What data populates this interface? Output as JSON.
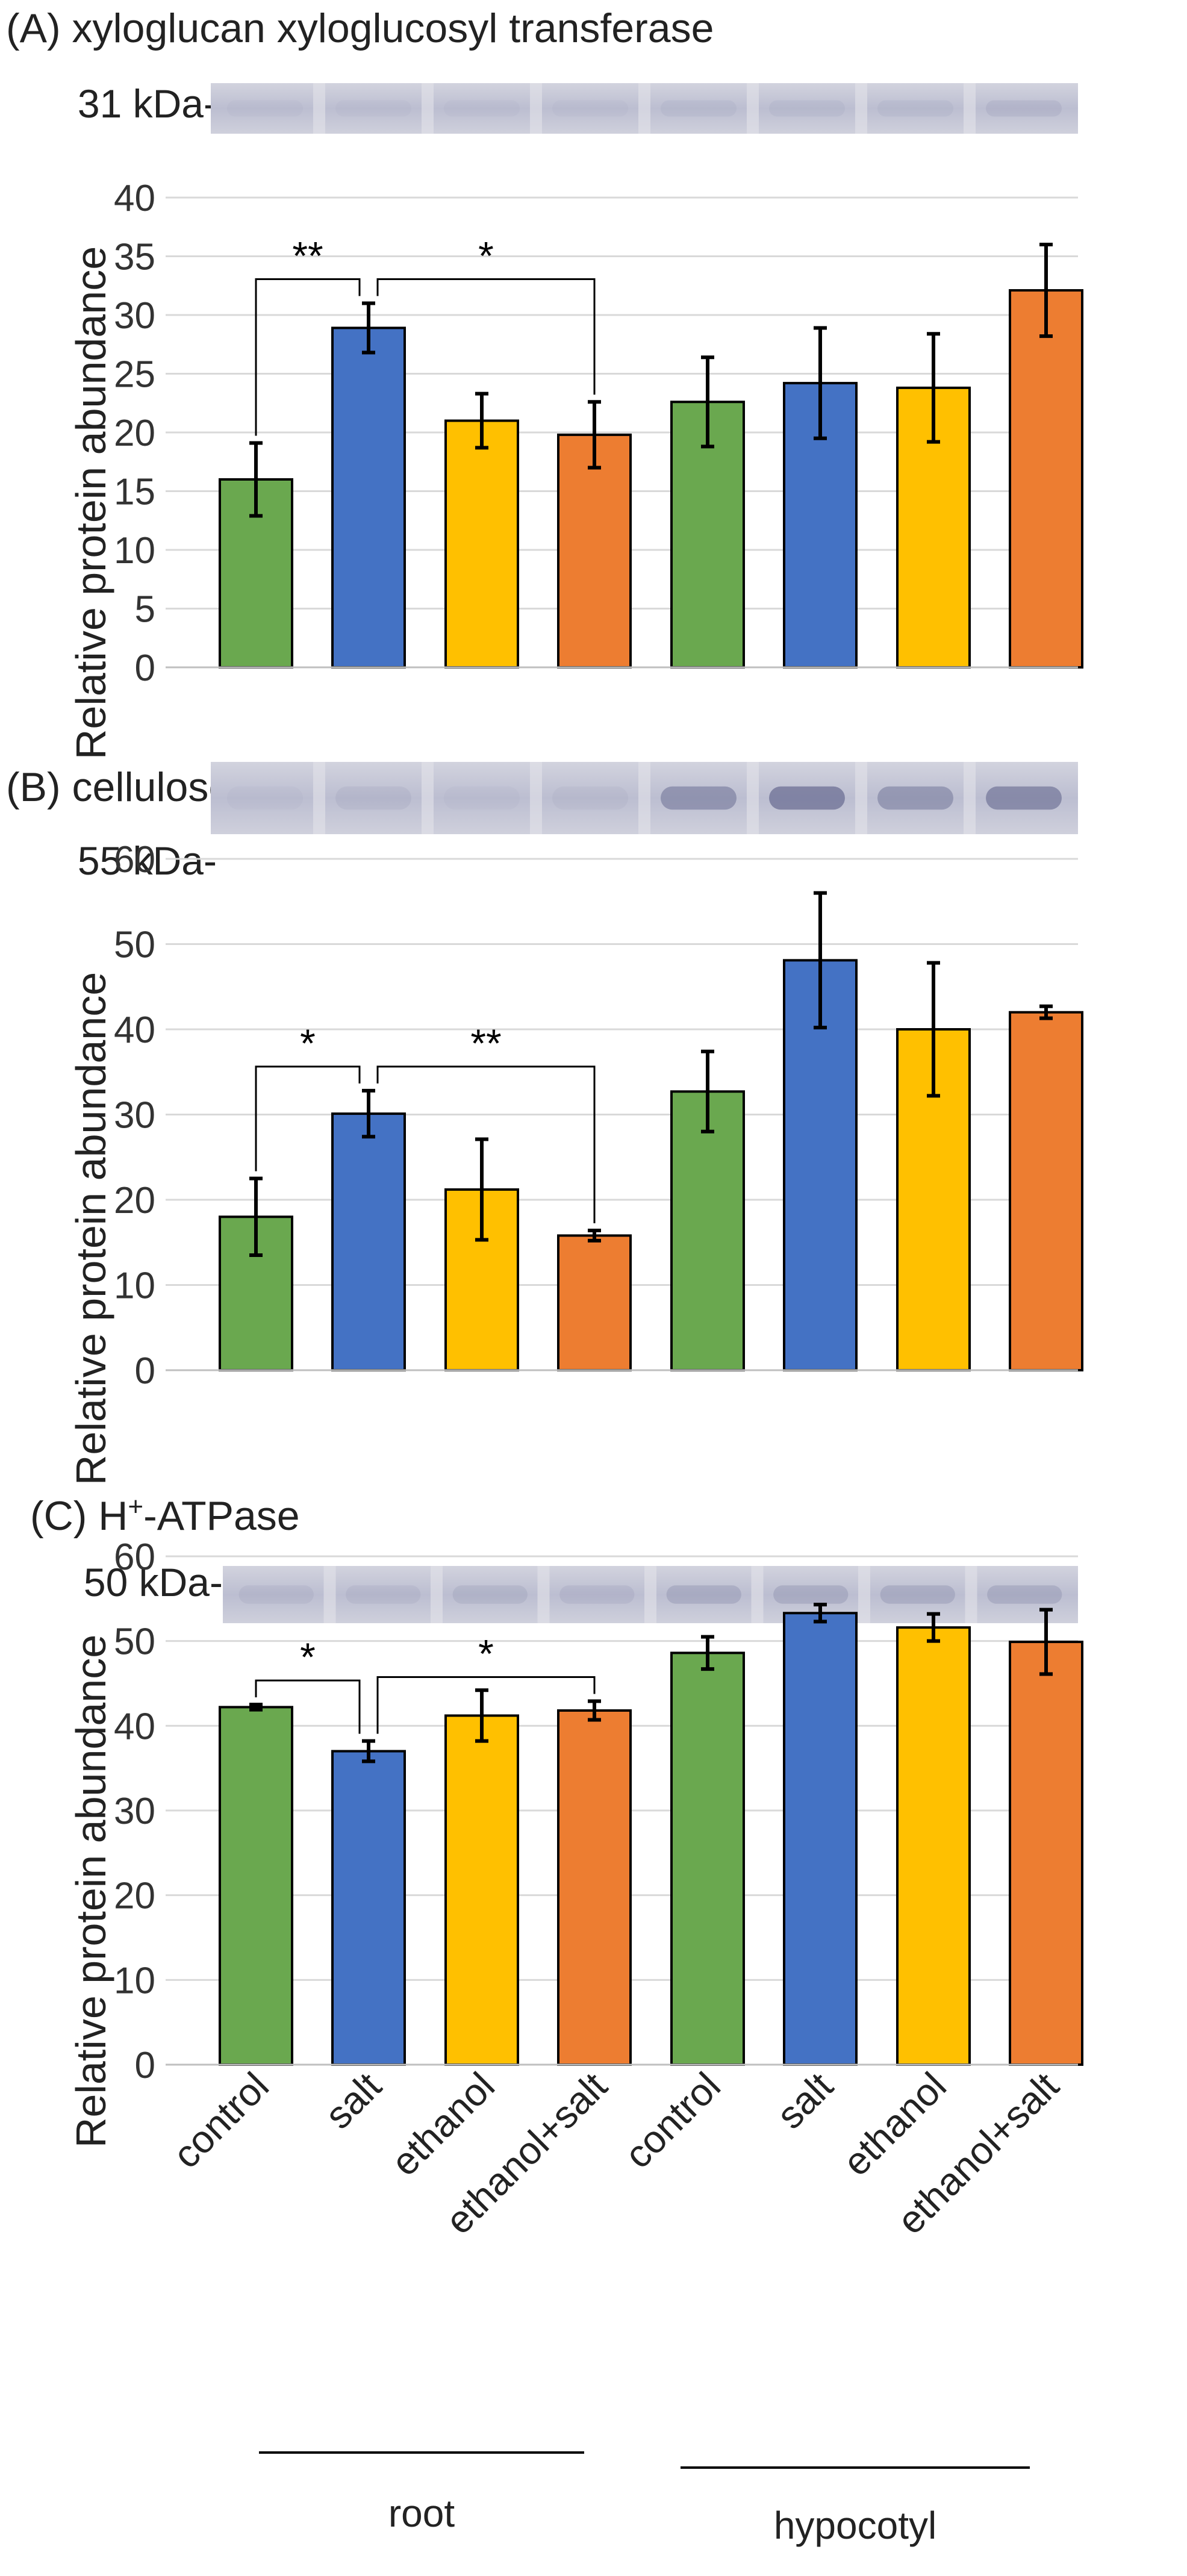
{
  "colors": {
    "control": "#6aa84f",
    "salt": "#4472c4",
    "ethanol": "#ffc000",
    "ethanol_salt": "#ed7d31",
    "gridline": "#d9d9d9",
    "band_base": "#c3c5d6",
    "band_light": "#e3e3ea",
    "band_dark": "#6c6f94"
  },
  "x_labels": [
    "control",
    "salt",
    "ethanol",
    "ethanol+salt",
    "control",
    "salt",
    "ethanol",
    "ethanol+salt"
  ],
  "groups": {
    "root": "root",
    "hypocotyl": "hypocotyl"
  },
  "panels": [
    {
      "id": "A",
      "title": "(A) xyloglucan xyloglucosyl transferase",
      "blot_label": "31 kDa-",
      "blot_band_intensity": [
        0.05,
        0.05,
        0.05,
        0.05,
        0.08,
        0.08,
        0.08,
        0.12
      ]
    },
    {
      "id": "B",
      "title": "(B) cellulose synthase",
      "blot_label": "55 kDa-",
      "blot_band_intensity": [
        0.05,
        0.1,
        0.05,
        0.07,
        0.55,
        0.75,
        0.5,
        0.65
      ]
    },
    {
      "id": "C",
      "title_prefix": "(C) H",
      "title_sup": "+",
      "title_suffix": "-ATPase",
      "blot_label": "50 kDa-",
      "blot_band_intensity": [
        0.1,
        0.1,
        0.15,
        0.12,
        0.25,
        0.25,
        0.25,
        0.25
      ]
    }
  ],
  "chart_data": [
    {
      "type": "bar",
      "panel": "A",
      "title": "(A) xyloglucan xyloglucosyl transferase",
      "ylabel": "Relative protein abundance",
      "ylim": [
        0,
        40
      ],
      "yticks": [
        0,
        5,
        10,
        15,
        20,
        25,
        30,
        35,
        40
      ],
      "categories": [
        "control",
        "salt",
        "ethanol",
        "ethanol+salt",
        "control",
        "salt",
        "ethanol",
        "ethanol+salt"
      ],
      "values": [
        16.0,
        28.9,
        21.0,
        19.8,
        22.6,
        24.2,
        23.8,
        32.1
      ],
      "errors": [
        3.1,
        2.1,
        2.3,
        2.8,
        3.8,
        4.7,
        4.6,
        3.9
      ],
      "significance": [
        {
          "from": 0,
          "to": 1,
          "label": "**"
        },
        {
          "from": 1,
          "to": 3,
          "label": "*"
        }
      ]
    },
    {
      "type": "bar",
      "panel": "B",
      "title": "(B) cellulose synthase",
      "ylabel": "Relative protein abundance",
      "ylim": [
        0,
        60
      ],
      "yticks": [
        0,
        10,
        20,
        30,
        40,
        50,
        60
      ],
      "categories": [
        "control",
        "salt",
        "ethanol",
        "ethanol+salt",
        "control",
        "salt",
        "ethanol",
        "ethanol+salt"
      ],
      "values": [
        18.0,
        30.1,
        21.2,
        15.8,
        32.7,
        48.1,
        40.0,
        42.0
      ],
      "errors": [
        4.5,
        2.7,
        5.9,
        0.6,
        4.7,
        7.9,
        7.8,
        0.7
      ],
      "significance": [
        {
          "from": 0,
          "to": 1,
          "label": "*"
        },
        {
          "from": 1,
          "to": 3,
          "label": "**"
        }
      ]
    },
    {
      "type": "bar",
      "panel": "C",
      "title": "(C) H+-ATPase",
      "ylabel": "Relative protein abundance",
      "ylim": [
        0,
        60
      ],
      "yticks": [
        0,
        10,
        20,
        30,
        40,
        50,
        60
      ],
      "categories": [
        "control",
        "salt",
        "ethanol",
        "ethanol+salt",
        "control",
        "salt",
        "ethanol",
        "ethanol+salt"
      ],
      "values": [
        42.2,
        37.0,
        41.2,
        41.8,
        48.6,
        53.3,
        51.6,
        49.9
      ],
      "errors": [
        0.3,
        1.2,
        3.0,
        1.1,
        1.9,
        1.0,
        1.6,
        3.8
      ],
      "significance": [
        {
          "from": 0,
          "to": 1,
          "label": "*"
        },
        {
          "from": 1,
          "to": 3,
          "label": "*"
        }
      ]
    }
  ]
}
